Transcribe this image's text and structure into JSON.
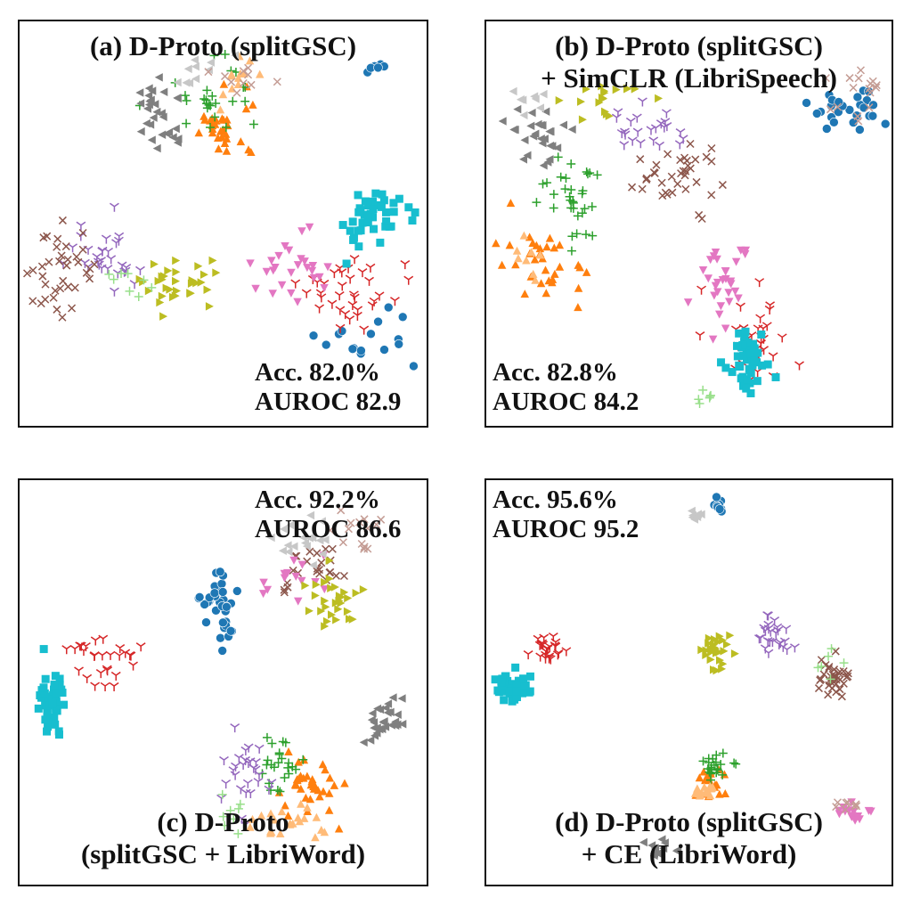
{
  "chart_data": [
    {
      "type": "scatter",
      "title": "(a) D-Proto (splitGSC)",
      "title_line2": "",
      "metrics": {
        "acc": "Acc. 82.0%",
        "auroc": "AUROC 82.9"
      },
      "metrics_position": "bottom-right",
      "title_position": "top",
      "clusters": [
        {
          "cls": 0,
          "cx": 0.85,
          "cy": 0.79,
          "sx": 0.06,
          "sy": 0.04,
          "n": 16
        },
        {
          "cls": 0,
          "cx": 0.88,
          "cy": 0.12,
          "sx": 0.01,
          "sy": 0.01,
          "n": 6
        },
        {
          "cls": 1,
          "cx": 0.5,
          "cy": 0.27,
          "sx": 0.04,
          "sy": 0.04,
          "n": 30
        },
        {
          "cls": 2,
          "cx": 0.47,
          "cy": 0.19,
          "sx": 0.05,
          "sy": 0.05,
          "n": 26
        },
        {
          "cls": 3,
          "cx": 0.8,
          "cy": 0.68,
          "sx": 0.06,
          "sy": 0.05,
          "n": 36
        },
        {
          "cls": 4,
          "cx": 0.21,
          "cy": 0.58,
          "sx": 0.05,
          "sy": 0.04,
          "n": 30
        },
        {
          "cls": 5,
          "cx": 0.1,
          "cy": 0.62,
          "sx": 0.04,
          "sy": 0.05,
          "n": 36
        },
        {
          "cls": 6,
          "cx": 0.69,
          "cy": 0.6,
          "sx": 0.06,
          "sy": 0.04,
          "n": 26
        },
        {
          "cls": 7,
          "cx": 0.34,
          "cy": 0.23,
          "sx": 0.04,
          "sy": 0.04,
          "n": 30
        },
        {
          "cls": 8,
          "cx": 0.38,
          "cy": 0.64,
          "sx": 0.05,
          "sy": 0.03,
          "n": 32
        },
        {
          "cls": 9,
          "cx": 0.88,
          "cy": 0.49,
          "sx": 0.04,
          "sy": 0.04,
          "n": 44
        },
        {
          "cls": 10,
          "cx": 0.53,
          "cy": 0.16,
          "sx": 0.03,
          "sy": 0.03,
          "n": 12
        },
        {
          "cls": 11,
          "cx": 0.44,
          "cy": 0.12,
          "sx": 0.03,
          "sy": 0.02,
          "n": 10
        },
        {
          "cls": 12,
          "cx": 0.55,
          "cy": 0.15,
          "sx": 0.03,
          "sy": 0.02,
          "n": 10
        },
        {
          "cls": 13,
          "cx": 0.28,
          "cy": 0.64,
          "sx": 0.03,
          "sy": 0.02,
          "n": 8
        }
      ]
    },
    {
      "type": "scatter",
      "title": "(b) D-Proto (splitGSC)",
      "title_line2": "+ SimCLR (LibriSpeech)",
      "metrics": {
        "acc": "Acc. 82.8%",
        "auroc": "AUROC 84.2"
      },
      "metrics_position": "bottom-left",
      "title_position": "top",
      "clusters": [
        {
          "cls": 0,
          "cx": 0.89,
          "cy": 0.22,
          "sx": 0.05,
          "sy": 0.03,
          "n": 26
        },
        {
          "cls": 1,
          "cx": 0.15,
          "cy": 0.6,
          "sx": 0.05,
          "sy": 0.05,
          "n": 32
        },
        {
          "cls": 2,
          "cx": 0.21,
          "cy": 0.44,
          "sx": 0.04,
          "sy": 0.06,
          "n": 32
        },
        {
          "cls": 3,
          "cx": 0.66,
          "cy": 0.8,
          "sx": 0.04,
          "sy": 0.06,
          "n": 34
        },
        {
          "cls": 4,
          "cx": 0.4,
          "cy": 0.26,
          "sx": 0.05,
          "sy": 0.03,
          "n": 24
        },
        {
          "cls": 5,
          "cx": 0.47,
          "cy": 0.38,
          "sx": 0.05,
          "sy": 0.04,
          "n": 36
        },
        {
          "cls": 6,
          "cx": 0.58,
          "cy": 0.66,
          "sx": 0.04,
          "sy": 0.06,
          "n": 30
        },
        {
          "cls": 7,
          "cx": 0.13,
          "cy": 0.28,
          "sx": 0.04,
          "sy": 0.04,
          "n": 28
        },
        {
          "cls": 8,
          "cx": 0.29,
          "cy": 0.2,
          "sx": 0.05,
          "sy": 0.04,
          "n": 18
        },
        {
          "cls": 9,
          "cx": 0.64,
          "cy": 0.84,
          "sx": 0.03,
          "sy": 0.04,
          "n": 42
        },
        {
          "cls": 10,
          "cx": 0.1,
          "cy": 0.58,
          "sx": 0.02,
          "sy": 0.04,
          "n": 8
        },
        {
          "cls": 11,
          "cx": 0.11,
          "cy": 0.2,
          "sx": 0.02,
          "sy": 0.02,
          "n": 8
        },
        {
          "cls": 12,
          "cx": 0.93,
          "cy": 0.18,
          "sx": 0.03,
          "sy": 0.04,
          "n": 16
        },
        {
          "cls": 13,
          "cx": 0.53,
          "cy": 0.92,
          "sx": 0.02,
          "sy": 0.01,
          "n": 6
        }
      ]
    },
    {
      "type": "scatter",
      "title": "(c) D-Proto",
      "title_line2": "(splitGSC + LibriWord)",
      "metrics": {
        "acc": "Acc. 92.2%",
        "auroc": "AUROC 86.6"
      },
      "metrics_position": "top-right",
      "title_position": "bottom",
      "clusters": [
        {
          "cls": 0,
          "cx": 0.5,
          "cy": 0.32,
          "sx": 0.03,
          "sy": 0.05,
          "n": 38
        },
        {
          "cls": 1,
          "cx": 0.71,
          "cy": 0.76,
          "sx": 0.04,
          "sy": 0.04,
          "n": 36
        },
        {
          "cls": 2,
          "cx": 0.63,
          "cy": 0.68,
          "sx": 0.03,
          "sy": 0.05,
          "n": 24
        },
        {
          "cls": 3,
          "cx": 0.21,
          "cy": 0.44,
          "sx": 0.04,
          "sy": 0.04,
          "n": 28
        },
        {
          "cls": 4,
          "cx": 0.56,
          "cy": 0.72,
          "sx": 0.03,
          "sy": 0.05,
          "n": 28
        },
        {
          "cls": 5,
          "cx": 0.72,
          "cy": 0.22,
          "sx": 0.05,
          "sy": 0.03,
          "n": 24
        },
        {
          "cls": 6,
          "cx": 0.67,
          "cy": 0.24,
          "sx": 0.04,
          "sy": 0.03,
          "n": 14
        },
        {
          "cls": 7,
          "cx": 0.89,
          "cy": 0.59,
          "sx": 0.03,
          "sy": 0.03,
          "n": 30
        },
        {
          "cls": 8,
          "cx": 0.78,
          "cy": 0.29,
          "sx": 0.03,
          "sy": 0.04,
          "n": 30
        },
        {
          "cls": 9,
          "cx": 0.08,
          "cy": 0.55,
          "sx": 0.02,
          "sy": 0.04,
          "n": 44
        },
        {
          "cls": 10,
          "cx": 0.66,
          "cy": 0.85,
          "sx": 0.04,
          "sy": 0.03,
          "n": 22
        },
        {
          "cls": 11,
          "cx": 0.7,
          "cy": 0.15,
          "sx": 0.04,
          "sy": 0.03,
          "n": 18
        },
        {
          "cls": 12,
          "cx": 0.82,
          "cy": 0.12,
          "sx": 0.04,
          "sy": 0.03,
          "n": 14
        },
        {
          "cls": 13,
          "cx": 0.52,
          "cy": 0.82,
          "sx": 0.02,
          "sy": 0.03,
          "n": 8
        }
      ]
    },
    {
      "type": "scatter",
      "title": "(d) D-Proto (splitGSC)",
      "title_line2": "+ CE (LibriWord)",
      "metrics": {
        "acc": "Acc. 95.6%",
        "auroc": "AUROC 95.2"
      },
      "metrics_position": "top-left",
      "title_position": "bottom",
      "clusters": [
        {
          "cls": 0,
          "cx": 0.57,
          "cy": 0.06,
          "sx": 0.01,
          "sy": 0.01,
          "n": 10
        },
        {
          "cls": 1,
          "cx": 0.55,
          "cy": 0.75,
          "sx": 0.02,
          "sy": 0.02,
          "n": 20
        },
        {
          "cls": 2,
          "cx": 0.56,
          "cy": 0.7,
          "sx": 0.02,
          "sy": 0.02,
          "n": 22
        },
        {
          "cls": 3,
          "cx": 0.15,
          "cy": 0.41,
          "sx": 0.02,
          "sy": 0.02,
          "n": 24
        },
        {
          "cls": 4,
          "cx": 0.71,
          "cy": 0.39,
          "sx": 0.02,
          "sy": 0.03,
          "n": 26
        },
        {
          "cls": 5,
          "cx": 0.86,
          "cy": 0.49,
          "sx": 0.02,
          "sy": 0.02,
          "n": 36
        },
        {
          "cls": 6,
          "cx": 0.91,
          "cy": 0.82,
          "sx": 0.02,
          "sy": 0.02,
          "n": 16
        },
        {
          "cls": 7,
          "cx": 0.42,
          "cy": 0.91,
          "sx": 0.02,
          "sy": 0.01,
          "n": 12
        },
        {
          "cls": 8,
          "cx": 0.57,
          "cy": 0.42,
          "sx": 0.02,
          "sy": 0.02,
          "n": 26
        },
        {
          "cls": 9,
          "cx": 0.06,
          "cy": 0.51,
          "sx": 0.02,
          "sy": 0.02,
          "n": 40
        },
        {
          "cls": 10,
          "cx": 0.54,
          "cy": 0.77,
          "sx": 0.02,
          "sy": 0.01,
          "n": 14
        },
        {
          "cls": 11,
          "cx": 0.52,
          "cy": 0.09,
          "sx": 0.01,
          "sy": 0.01,
          "n": 8
        },
        {
          "cls": 12,
          "cx": 0.89,
          "cy": 0.8,
          "sx": 0.02,
          "sy": 0.01,
          "n": 8
        },
        {
          "cls": 13,
          "cx": 0.84,
          "cy": 0.46,
          "sx": 0.02,
          "sy": 0.02,
          "n": 6
        }
      ]
    }
  ],
  "palette": [
    {
      "marker": "circle",
      "color": "#1f77b4"
    },
    {
      "marker": "triangle-up",
      "color": "#ff7f0e"
    },
    {
      "marker": "plus",
      "color": "#2ca02c"
    },
    {
      "marker": "tri-down",
      "color": "#d62728"
    },
    {
      "marker": "tri-down",
      "color": "#9467bd"
    },
    {
      "marker": "x",
      "color": "#8c564b"
    },
    {
      "marker": "triangle-down",
      "color": "#e377c2"
    },
    {
      "marker": "triangle-left",
      "color": "#7f7f7f"
    },
    {
      "marker": "triangle-right",
      "color": "#bcbd22"
    },
    {
      "marker": "square",
      "color": "#17becf"
    },
    {
      "marker": "triangle-up",
      "color": "#ffbb78"
    },
    {
      "marker": "triangle-left",
      "color": "#c7c7c7"
    },
    {
      "marker": "x",
      "color": "#c49c94"
    },
    {
      "marker": "plus",
      "color": "#98df8a"
    }
  ]
}
